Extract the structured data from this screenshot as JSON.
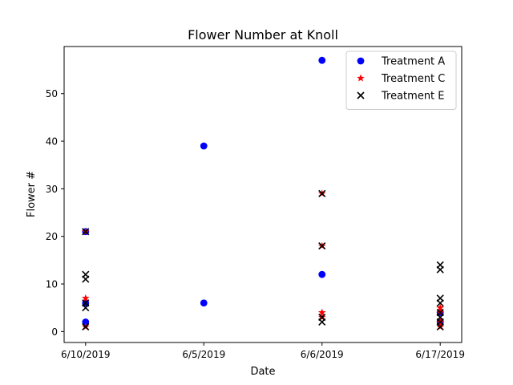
{
  "chart_data": {
    "type": "scatter",
    "title": "Flower Number at Knoll",
    "xlabel": "Date",
    "ylabel": "Flower #",
    "categories": [
      "6/10/2019",
      "6/5/2019",
      "6/6/2019",
      "6/17/2019"
    ],
    "yticks": [
      "0",
      "10",
      "20",
      "30",
      "40",
      "50"
    ],
    "ylim": [
      -2.3,
      59.9
    ],
    "legend_position": "top-right",
    "series": [
      {
        "name": "Treatment A",
        "marker": "circle",
        "color": "#0000ff",
        "points": [
          {
            "x": "6/10/2019",
            "y": 21
          },
          {
            "x": "6/10/2019",
            "y": 6
          },
          {
            "x": "6/10/2019",
            "y": 2
          },
          {
            "x": "6/5/2019",
            "y": 39
          },
          {
            "x": "6/5/2019",
            "y": 6
          },
          {
            "x": "6/6/2019",
            "y": 57
          },
          {
            "x": "6/6/2019",
            "y": 12
          },
          {
            "x": "6/17/2019",
            "y": 4
          },
          {
            "x": "6/17/2019",
            "y": 2
          }
        ]
      },
      {
        "name": "Treatment C",
        "marker": "star",
        "color": "#ff0000",
        "points": [
          {
            "x": "6/10/2019",
            "y": 21
          },
          {
            "x": "6/10/2019",
            "y": 7
          },
          {
            "x": "6/10/2019",
            "y": 1
          },
          {
            "x": "6/6/2019",
            "y": 29
          },
          {
            "x": "6/6/2019",
            "y": 18
          },
          {
            "x": "6/6/2019",
            "y": 4
          },
          {
            "x": "6/6/2019",
            "y": 3
          },
          {
            "x": "6/17/2019",
            "y": 5
          },
          {
            "x": "6/17/2019",
            "y": 4
          },
          {
            "x": "6/17/2019",
            "y": 2
          },
          {
            "x": "6/17/2019",
            "y": 1
          }
        ]
      },
      {
        "name": "Treatment E",
        "marker": "x",
        "color": "#000000",
        "points": [
          {
            "x": "6/10/2019",
            "y": 21
          },
          {
            "x": "6/10/2019",
            "y": 12
          },
          {
            "x": "6/10/2019",
            "y": 11
          },
          {
            "x": "6/10/2019",
            "y": 6
          },
          {
            "x": "6/10/2019",
            "y": 5
          },
          {
            "x": "6/10/2019",
            "y": 1
          },
          {
            "x": "6/6/2019",
            "y": 29
          },
          {
            "x": "6/6/2019",
            "y": 18
          },
          {
            "x": "6/6/2019",
            "y": 3
          },
          {
            "x": "6/6/2019",
            "y": 2
          },
          {
            "x": "6/17/2019",
            "y": 14
          },
          {
            "x": "6/17/2019",
            "y": 13
          },
          {
            "x": "6/17/2019",
            "y": 7
          },
          {
            "x": "6/17/2019",
            "y": 6
          },
          {
            "x": "6/17/2019",
            "y": 4
          },
          {
            "x": "6/17/2019",
            "y": 3
          },
          {
            "x": "6/17/2019",
            "y": 2
          },
          {
            "x": "6/17/2019",
            "y": 1
          }
        ]
      }
    ]
  }
}
